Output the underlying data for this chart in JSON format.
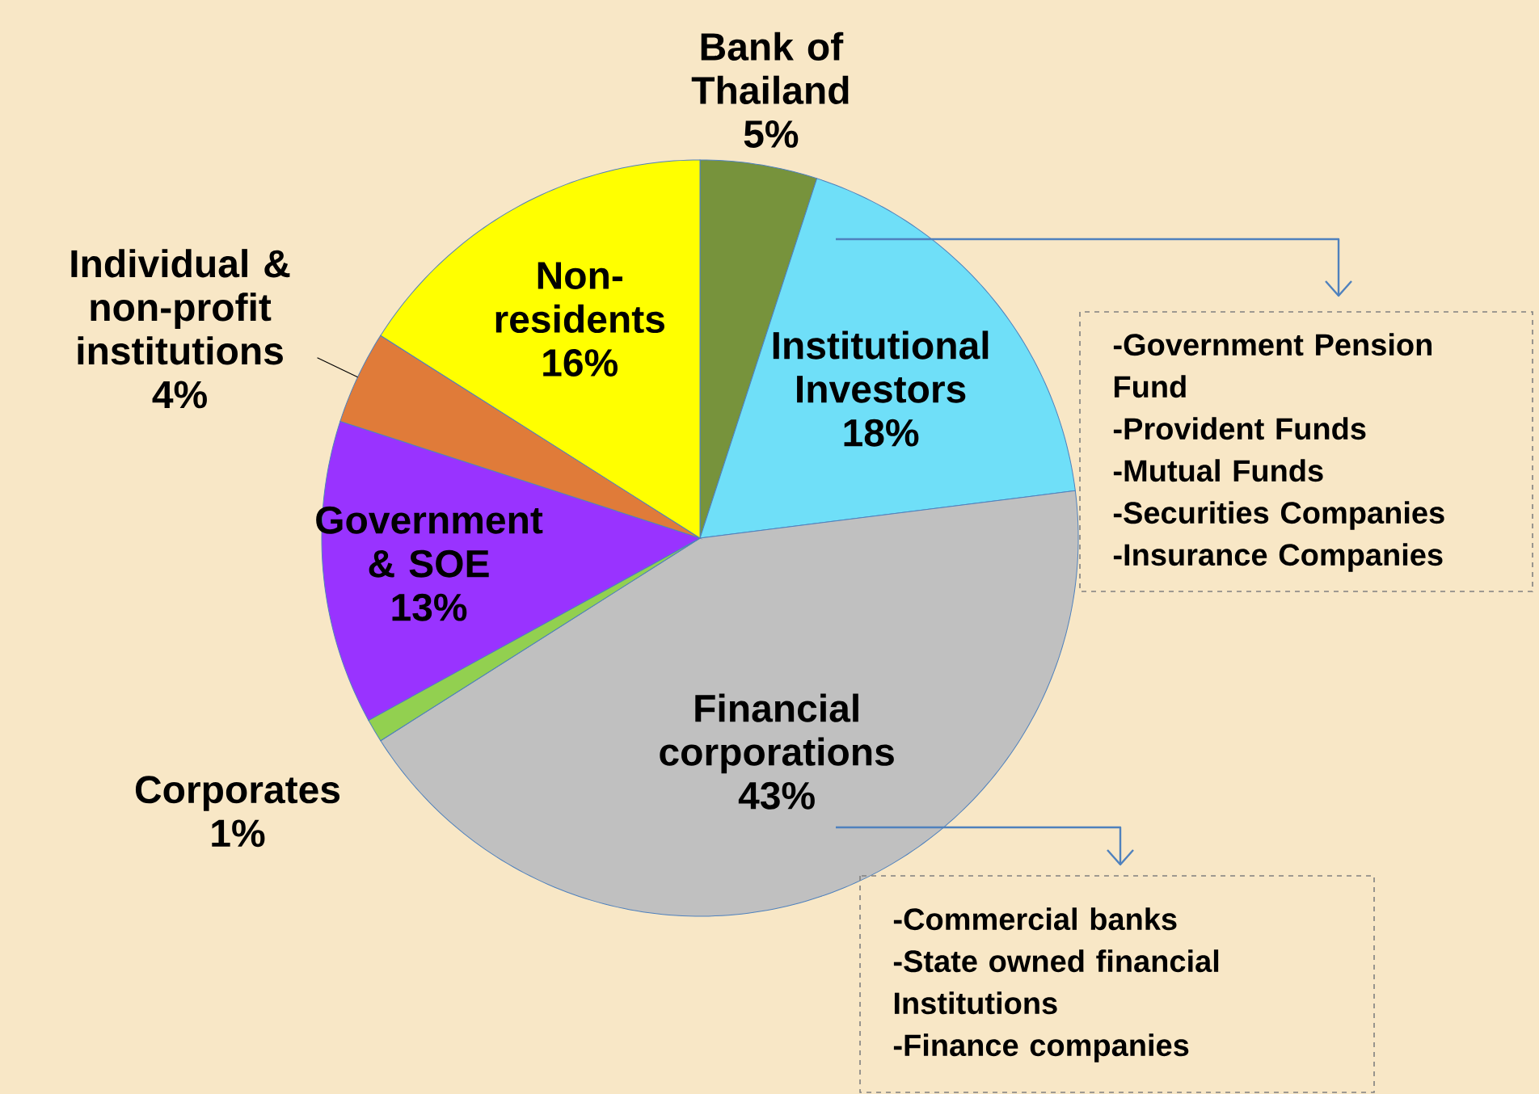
{
  "chart_data": {
    "type": "pie",
    "categories": [
      "Bank of Thailand",
      "Institutional Investors",
      "Financial corporations",
      "Corporates",
      "Government & SOE",
      "Individual & non-profit institutions",
      "Non-residents"
    ],
    "values": [
      5,
      18,
      43,
      1,
      13,
      4,
      16
    ],
    "value_labels": [
      "5%",
      "18%",
      "43%",
      "1%",
      "13%",
      "4%",
      "16%"
    ],
    "colors": [
      "#77933c",
      "#6fdff8",
      "#c0c0c0",
      "#92d050",
      "#9933ff",
      "#e07b39",
      "#ffff00"
    ],
    "annotations": [
      "-Government Pension Fund",
      "-Provident Funds",
      "-Mutual Funds",
      "-Securities Companies",
      "-Insurance Companies",
      "-Commercial  banks",
      "-State owned financial Institutions",
      "-Finance companies"
    ]
  }
}
